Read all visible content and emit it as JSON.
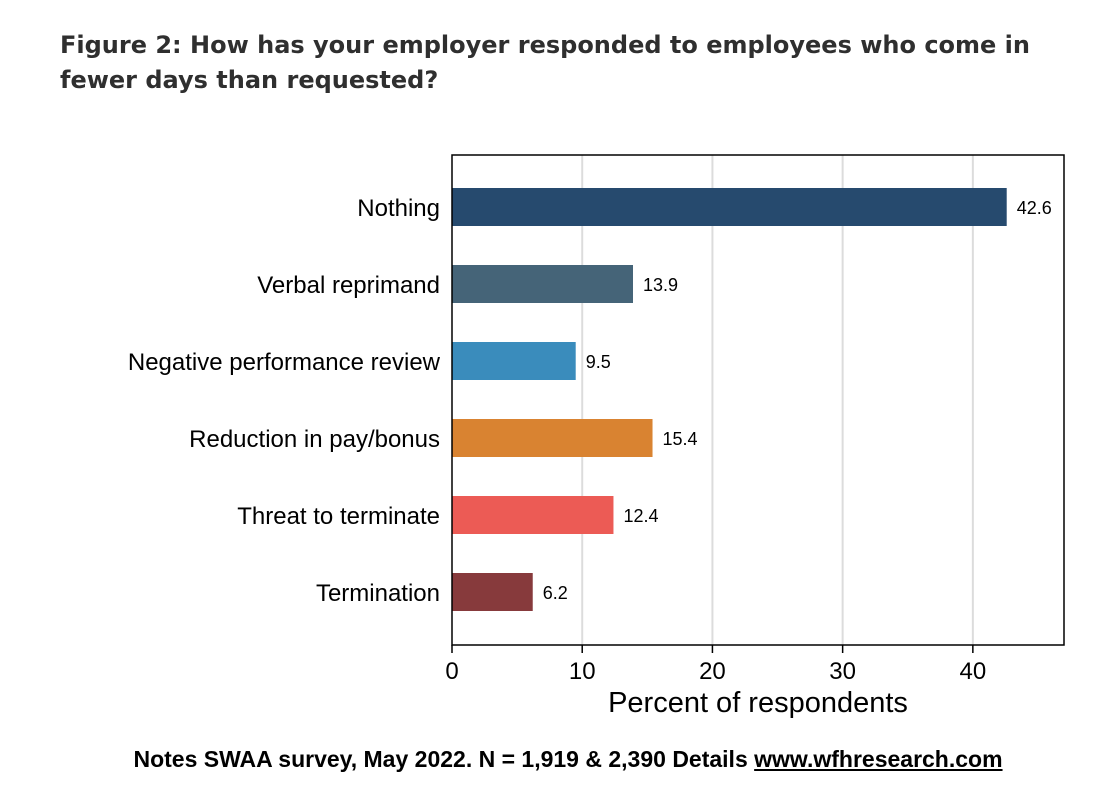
{
  "title": "Figure 2: How has your employer responded to employees who come in fewer days than requested?",
  "footer": {
    "prefix": "Notes SWAA survey, May 2022. N = 1,919 & 2,390 Details ",
    "link": "www.wfhresearch.com"
  },
  "chart_data": {
    "type": "bar",
    "orientation": "horizontal",
    "categories": [
      "Nothing",
      "Verbal reprimand",
      "Negative performance review",
      "Reduction in pay/bonus",
      "Threat to terminate",
      "Termination"
    ],
    "values": [
      42.6,
      13.9,
      9.5,
      15.4,
      12.4,
      6.2
    ],
    "value_labels": [
      "42.6",
      "13.9",
      "9.5",
      "15.4",
      "12.4",
      "6.2"
    ],
    "colors": [
      "#264a6e",
      "#456478",
      "#3a8cbc",
      "#d98331",
      "#ec5b55",
      "#873a3c"
    ],
    "xlabel": "Percent of respondents",
    "ylabel": "",
    "xlim": [
      0,
      47
    ],
    "xticks": [
      0,
      10,
      20,
      30,
      40
    ],
    "xtick_labels": [
      "0",
      "10",
      "20",
      "30",
      "40"
    ],
    "grid": "vertical"
  }
}
